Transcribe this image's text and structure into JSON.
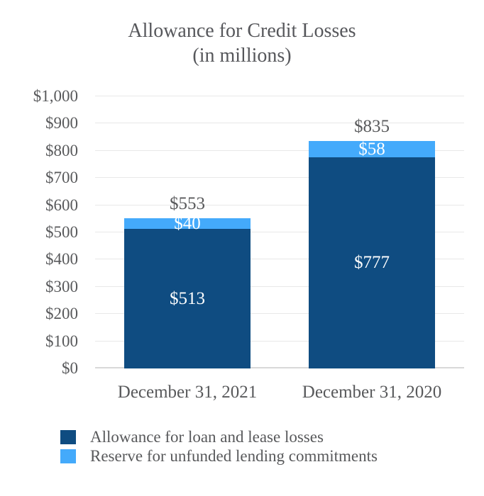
{
  "chart_data": {
    "type": "bar",
    "stacked": true,
    "title": "Allowance for Credit Losses",
    "subtitle": "(in millions)",
    "categories": [
      "December 31, 2021",
      "December 31, 2020"
    ],
    "series": [
      {
        "name": "Allowance for loan and lease losses",
        "color": "#0F4C81",
        "values": [
          513,
          777
        ],
        "labels": [
          "$513",
          "$777"
        ]
      },
      {
        "name": "Reserve for unfunded lending commitments",
        "color": "#44AAFB",
        "values": [
          40,
          58
        ],
        "labels": [
          "$40",
          "$58"
        ]
      }
    ],
    "totals": {
      "values": [
        553,
        835
      ],
      "labels": [
        "$553",
        "$835"
      ]
    },
    "y_axis": {
      "min": 0,
      "max": 1000,
      "step": 100,
      "tick_labels": [
        "$0",
        "$100",
        "$200",
        "$300",
        "$400",
        "$500",
        "$600",
        "$700",
        "$800",
        "$900",
        "$1,000"
      ]
    },
    "grid": true,
    "legend_position": "bottom-left",
    "colors": {
      "text": "#58595B",
      "bar_label": "#FFFFFF",
      "gridline": "#E8E8E8",
      "axis_line": "#D8D8D8",
      "background": "#FFFFFF"
    }
  }
}
